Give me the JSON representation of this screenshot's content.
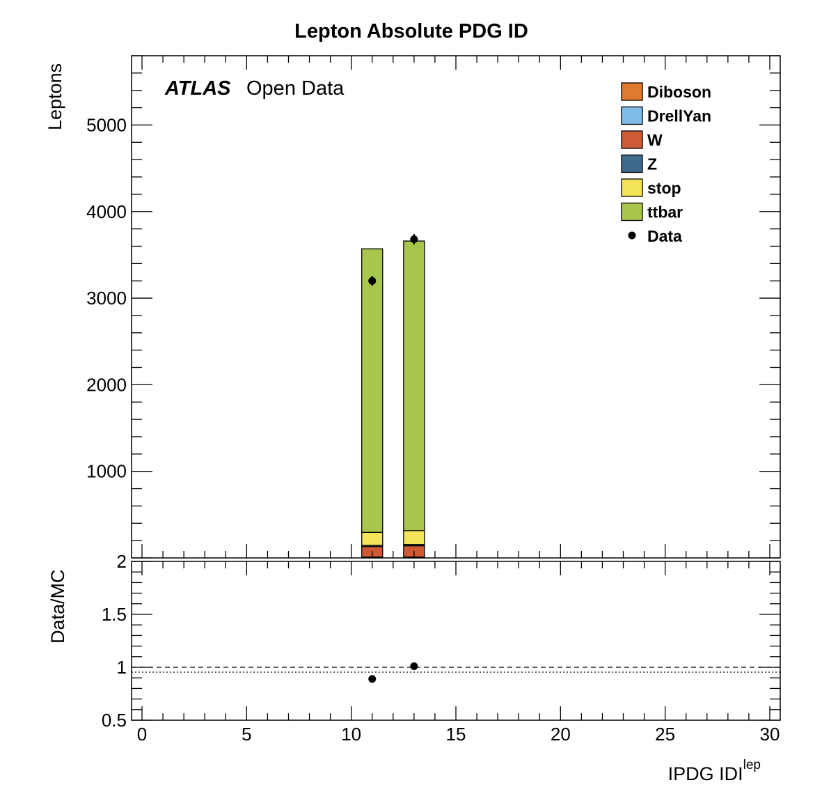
{
  "chart_data": {
    "type": "bar",
    "title": "Lepton Absolute PDG ID",
    "annotation": {
      "experiment": "ATLAS",
      "text": "Open Data"
    },
    "xlabel": "IPDG IDI",
    "xlabel_superscript": "lep",
    "ylabel": "Leptons",
    "xlim": [
      -0.5,
      30.5
    ],
    "ylim": [
      0,
      5800
    ],
    "x_ticks": [
      "0",
      "5",
      "10",
      "15",
      "20",
      "25",
      "30"
    ],
    "y_ticks": [
      "1000",
      "2000",
      "3000",
      "4000",
      "5000"
    ],
    "ratio": {
      "ylabel": "Data/MC",
      "ylim": [
        0.5,
        2
      ],
      "y_ticks": [
        "0.5",
        "1",
        "1.5",
        "2"
      ],
      "reference_line": 1,
      "points": [
        {
          "x": 11,
          "y": 0.89
        },
        {
          "x": 13,
          "y": 1.01
        }
      ]
    },
    "bins": [
      {
        "x_low": 10.5,
        "x_high": 11.5
      },
      {
        "x_low": 12.5,
        "x_high": 13.5
      }
    ],
    "series": [
      {
        "name": "Diboson",
        "color": "#e07a2e",
        "values": [
          5,
          5
        ]
      },
      {
        "name": "DrellYan",
        "color": "#7fbde8",
        "values": [
          5,
          5
        ]
      },
      {
        "name": "W",
        "color": "#cf5a36",
        "values": [
          120,
          130
        ]
      },
      {
        "name": "Z",
        "color": "#3e6b8c",
        "values": [
          15,
          15
        ]
      },
      {
        "name": "stop",
        "color": "#f3e45a",
        "values": [
          150,
          160
        ]
      },
      {
        "name": "ttbar",
        "color": "#a8c64b",
        "values": [
          3275,
          3345
        ]
      }
    ],
    "data": {
      "name": "Data",
      "points": [
        {
          "x": 11,
          "y": 3200,
          "err": 57
        },
        {
          "x": 13,
          "y": 3680,
          "err": 61
        }
      ]
    },
    "legend_position": "top-right",
    "grid": false
  }
}
